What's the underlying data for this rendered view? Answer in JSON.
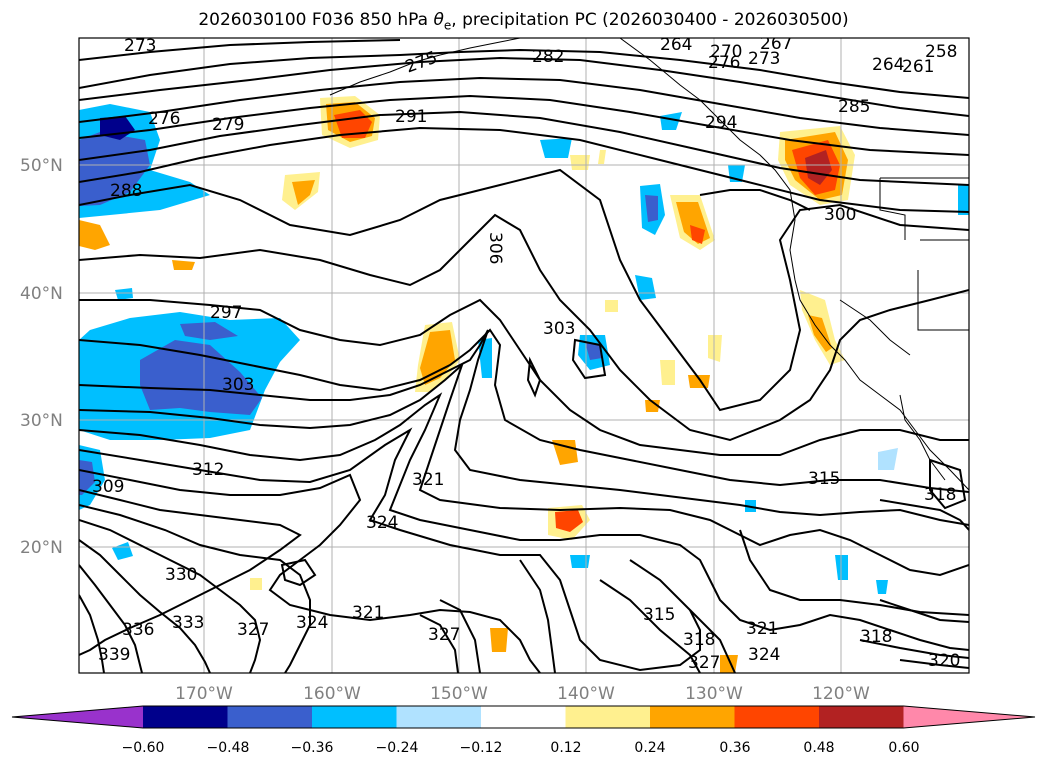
{
  "title": {
    "prefix": "2026030100 F036 850 hPa ",
    "symbol": "θ",
    "subscript": "e",
    "suffix": ", precipitation PC (2026030400 - 2026030500)"
  },
  "lat_labels": [
    "50°N",
    "40°N",
    "30°N",
    "20°N"
  ],
  "lon_labels": [
    "170°W",
    "160°W",
    "150°W",
    "140°W",
    "130°W",
    "120°W"
  ],
  "contour_labels": [
    "273",
    "275",
    "282",
    "264",
    "270",
    "267",
    "258",
    "276",
    "273",
    "261",
    "264",
    "285",
    "276",
    "279",
    "291",
    "288",
    "300",
    "294",
    "306",
    "297",
    "303",
    "303",
    "309",
    "312",
    "321",
    "324",
    "315",
    "318",
    "330",
    "321",
    "324",
    "327",
    "315",
    "318",
    "321",
    "324",
    "318",
    "336",
    "333",
    "327",
    "339",
    "327",
    "320"
  ],
  "colorbar": {
    "colors": [
      "#9932cc",
      "#00008b",
      "#3a5fcd",
      "#00bfff",
      "#b0e2ff",
      "#ffffff",
      "#fff08f",
      "#ffa500",
      "#ff4500",
      "#b22222",
      "#ff88aa"
    ],
    "tick_labels": [
      "−0.60",
      "−0.48",
      "−0.36",
      "−0.24",
      "−0.12",
      "0.12",
      "0.24",
      "0.36",
      "0.48",
      "0.60"
    ]
  }
}
